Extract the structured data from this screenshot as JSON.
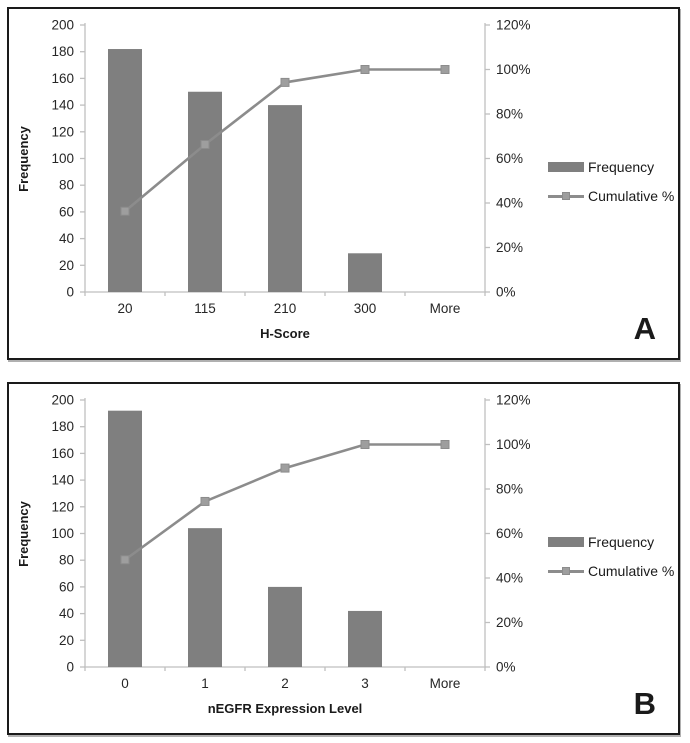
{
  "page": {
    "background": "#ffffff"
  },
  "colors": {
    "bar": "#7f7f7f",
    "line": "#8c8c8c",
    "marker_fill": "#9e9e9e",
    "marker_stroke": "#8c8c8c",
    "axis_line": "#bfbfbf",
    "tick_text": "#262626",
    "title_text": "#1a1a1a",
    "panel_border": "#1a1a1a"
  },
  "chart_data": [
    {
      "type": "pareto (bar + cumulative % line)",
      "panel_label": "A",
      "title": "",
      "xlabel": "H-Score",
      "ylabel": "Frequency",
      "categories": [
        "20",
        "115",
        "210",
        "300",
        "More"
      ],
      "series": [
        {
          "name": "Frequency",
          "type": "bar",
          "axis": "left",
          "values": [
            182,
            150,
            140,
            29,
            0
          ]
        },
        {
          "name": "Cumulative %",
          "type": "line",
          "axis": "right",
          "values_pct": [
            36.3,
            66.3,
            94.2,
            100,
            100
          ]
        }
      ],
      "left_axis": {
        "min": 0,
        "max": 200,
        "step": 20
      },
      "right_axis": {
        "min": 0,
        "max": 120,
        "step": 20,
        "suffix": "%"
      },
      "legend_position": "right",
      "gridlines": false
    },
    {
      "type": "pareto (bar + cumulative % line)",
      "panel_label": "B",
      "title": "",
      "xlabel": "nEGFR Expression Level",
      "ylabel": "Frequency",
      "categories": [
        "0",
        "1",
        "2",
        "3",
        "More"
      ],
      "series": [
        {
          "name": "Frequency",
          "type": "bar",
          "axis": "left",
          "values": [
            192,
            104,
            60,
            42,
            0
          ]
        },
        {
          "name": "Cumulative %",
          "type": "line",
          "axis": "right",
          "values_pct": [
            48.2,
            74.4,
            89.4,
            100,
            100
          ]
        }
      ],
      "left_axis": {
        "min": 0,
        "max": 200,
        "step": 20
      },
      "right_axis": {
        "min": 0,
        "max": 120,
        "step": 20,
        "suffix": "%"
      },
      "legend_position": "right",
      "gridlines": false
    }
  ]
}
